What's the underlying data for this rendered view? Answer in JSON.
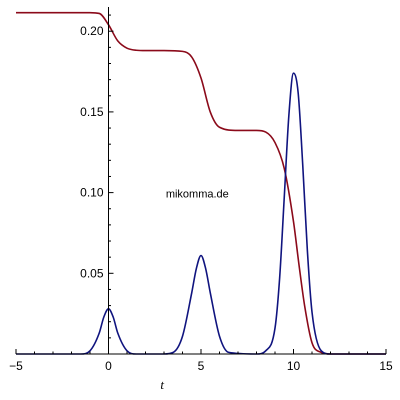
{
  "chart_data": {
    "type": "line",
    "title": "",
    "xlabel": "t",
    "ylabel": "",
    "xlim": [
      -5,
      15
    ],
    "ylim": [
      0,
      0.215
    ],
    "grid": false,
    "legend": "none",
    "xticks": [
      -5,
      0,
      5,
      10,
      15
    ],
    "xtick_labels": [
      "−5",
      "0",
      "5",
      "10",
      "15"
    ],
    "yticks": [
      0.05,
      0.1,
      0.15,
      0.2
    ],
    "ytick_labels": [
      "0.05",
      "0.10",
      "0.15",
      "0.20"
    ],
    "annotations": [
      {
        "text": "mikomma.de",
        "x": 4.8,
        "y": 0.097
      }
    ],
    "series": [
      {
        "color": "#8b0a1a",
        "x": [
          -5,
          -1,
          -0.5,
          0,
          0.5,
          1,
          1.5,
          2,
          3,
          4,
          4.5,
          5,
          5.5,
          6,
          7,
          8,
          8.5,
          9,
          9.5,
          10,
          10.3,
          10.6,
          11,
          11.5,
          12,
          15
        ],
        "values": [
          0.2115,
          0.2115,
          0.211,
          0.204,
          0.194,
          0.1895,
          0.1882,
          0.188,
          0.188,
          0.1875,
          0.184,
          0.171,
          0.15,
          0.1405,
          0.1385,
          0.1385,
          0.1375,
          0.131,
          0.115,
          0.082,
          0.055,
          0.03,
          0.007,
          0.001,
          0.0,
          0.0
        ]
      },
      {
        "color": "#10147f",
        "x": [
          -5,
          -1.5,
          -1,
          -0.5,
          -0.25,
          0,
          0.25,
          0.5,
          1,
          1.5,
          3,
          3.5,
          4,
          4.5,
          4.75,
          5,
          5.25,
          5.5,
          6,
          6.5,
          8,
          8.5,
          9,
          9.25,
          9.5,
          9.75,
          10,
          10.25,
          10.5,
          10.75,
          11,
          11.5,
          12,
          15
        ],
        "values": [
          0,
          0,
          0.002,
          0.013,
          0.023,
          0.028,
          0.023,
          0.013,
          0.002,
          0,
          0,
          0.001,
          0.011,
          0.038,
          0.053,
          0.061,
          0.053,
          0.038,
          0.011,
          0.001,
          0,
          0.002,
          0.016,
          0.047,
          0.097,
          0.148,
          0.174,
          0.162,
          0.117,
          0.064,
          0.026,
          0.002,
          0,
          0
        ]
      }
    ]
  }
}
